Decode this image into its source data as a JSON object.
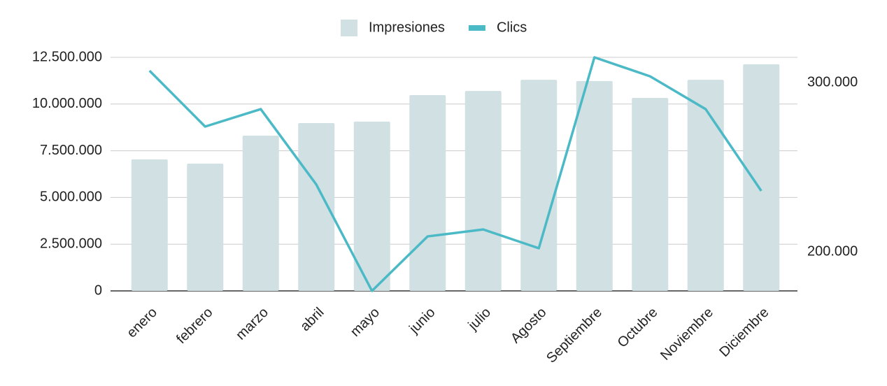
{
  "chart_data": {
    "type": "bar-line",
    "categories": [
      "enero",
      "febrero",
      "marzo",
      "abril",
      "mayo",
      "junio",
      "julio",
      "Agosto",
      "Septiembre",
      "Octubre",
      "Noviembre",
      "Diciembre"
    ],
    "series": [
      {
        "name": "Impresiones",
        "type": "bar",
        "color": "#d1e0e3",
        "values": [
          7040000,
          6810000,
          8310000,
          8980000,
          9060000,
          10480000,
          10700000,
          11300000,
          11230000,
          10330000,
          11300000,
          12130000
        ]
      },
      {
        "name": "Clics",
        "type": "line",
        "axis": "y2",
        "color": "#4bbac6",
        "values": [
          307000,
          274000,
          284300,
          239700,
          176900,
          209100,
          213200,
          202100,
          314900,
          303700,
          284300,
          236000
        ]
      }
    ],
    "ylim": [
      0,
      12500000
    ],
    "yticks": [
      {
        "value": 0,
        "label": "0"
      },
      {
        "value": 2500000,
        "label": "2.500.000"
      },
      {
        "value": 5000000,
        "label": "5.000.000"
      },
      {
        "value": 7500000,
        "label": "7.500.000"
      },
      {
        "value": 10000000,
        "label": "10.000.000"
      },
      {
        "value": 12500000,
        "label": "12.500.000"
      }
    ],
    "y2lim": [
      176900,
      314900
    ],
    "y2ticks": [
      {
        "value": 200000,
        "label": "200.000"
      },
      {
        "value": 300000,
        "label": "300.000"
      }
    ],
    "grid": true,
    "legend": "top"
  }
}
